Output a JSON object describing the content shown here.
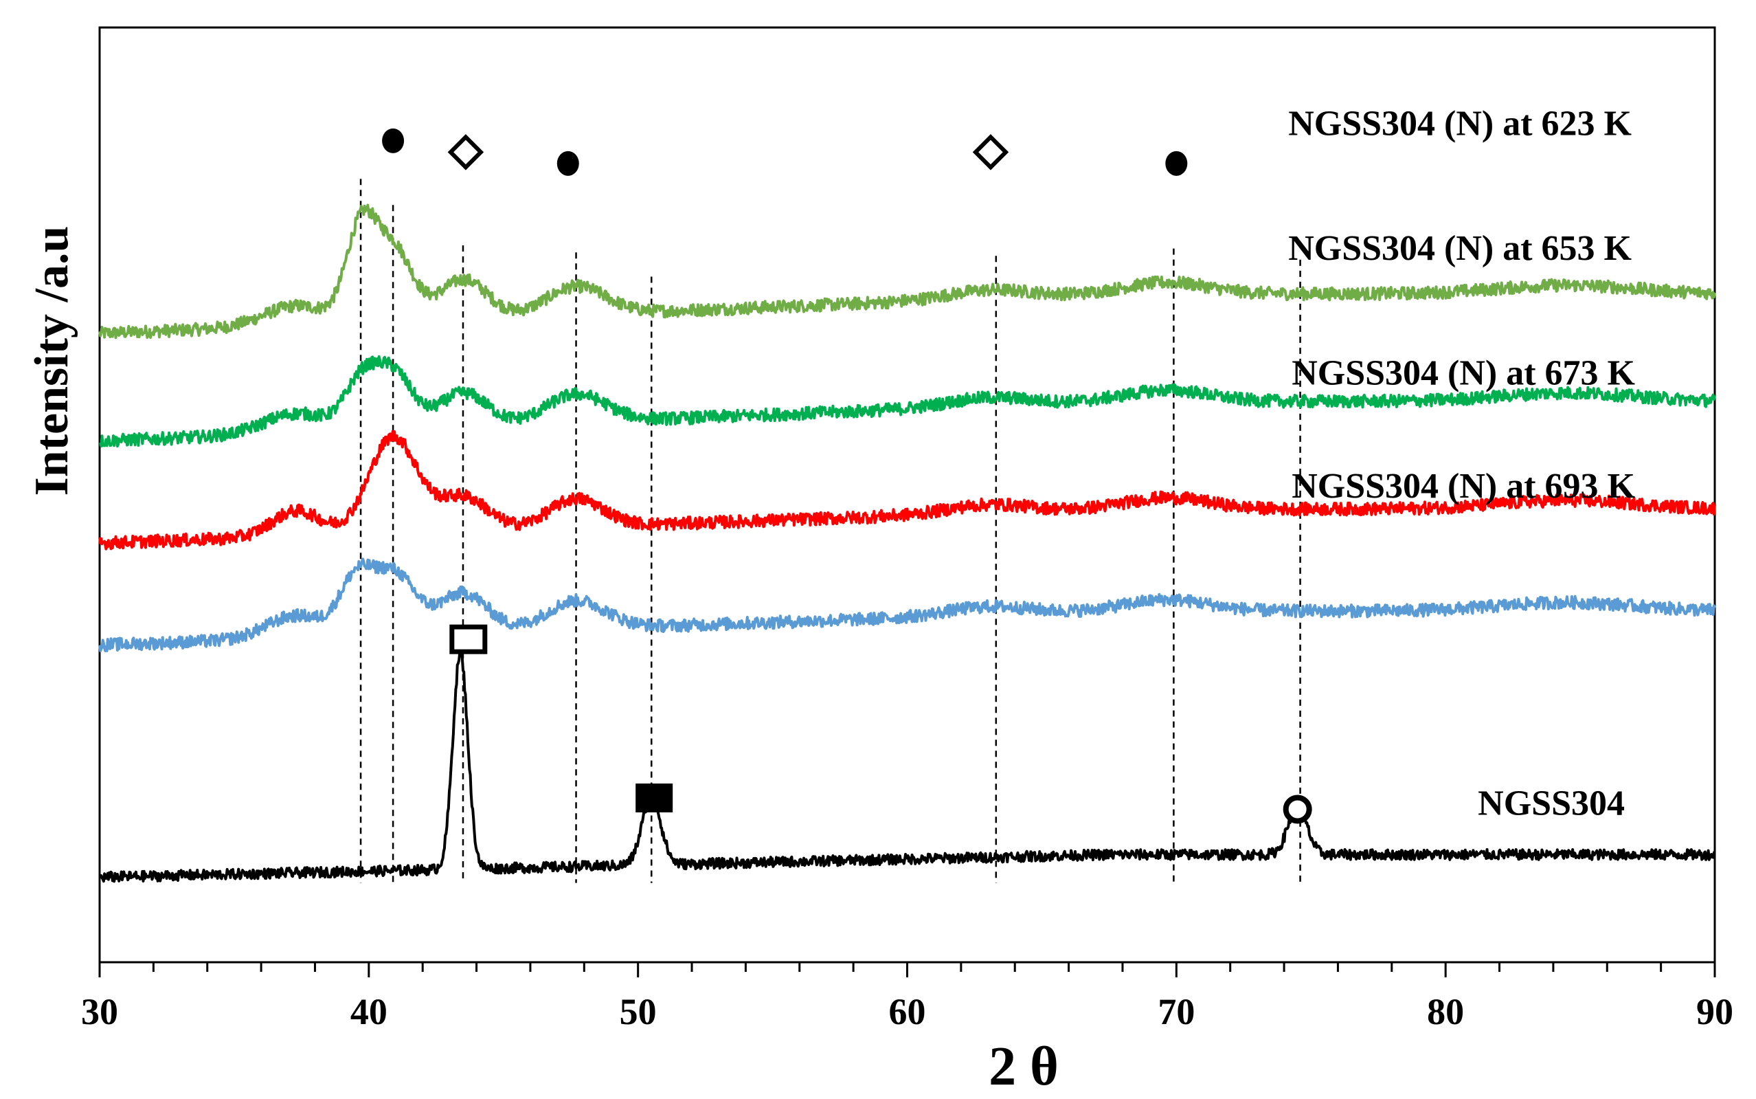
{
  "chart_data": {
    "type": "line",
    "title": "",
    "xlabel": "2 θ",
    "ylabel": "Intensity /a.u",
    "xlim": [
      30,
      90
    ],
    "xticks": [
      30,
      40,
      50,
      60,
      70,
      80,
      90
    ],
    "y_ticks_shown": false,
    "legend": "inline labels at right",
    "series": [
      {
        "name": "NGSS304 (N) at 623 K",
        "label": "NGSS304 (N) at 623 K",
        "color": "#70ad47",
        "baseline": 56,
        "end_level": 63,
        "noise": 1.1,
        "peaks": [
          {
            "x": 37.3,
            "height": 3.5,
            "width": 1.2
          },
          {
            "x": 39.7,
            "height": 16,
            "width": 0.55
          },
          {
            "x": 40.9,
            "height": 13,
            "width": 0.7
          },
          {
            "x": 43.5,
            "height": 7,
            "width": 0.9
          },
          {
            "x": 47.7,
            "height": 5,
            "width": 1.1
          },
          {
            "x": 63.0,
            "height": 1.5,
            "width": 1.5
          },
          {
            "x": 69.7,
            "height": 2,
            "width": 1.5
          },
          {
            "x": 84.5,
            "height": 1.5,
            "width": 2.5
          }
        ]
      },
      {
        "name": "NGSS304 (N) at 653 K",
        "label": "NGSS304 (N) at 653 K",
        "color": "#00b050",
        "baseline": 37,
        "end_level": 44,
        "noise": 1.1,
        "peaks": [
          {
            "x": 37.3,
            "height": 3.5,
            "width": 1.2
          },
          {
            "x": 39.7,
            "height": 8,
            "width": 0.6
          },
          {
            "x": 40.9,
            "height": 10,
            "width": 0.7
          },
          {
            "x": 43.5,
            "height": 6,
            "width": 0.9
          },
          {
            "x": 47.7,
            "height": 5,
            "width": 1.1
          },
          {
            "x": 63.0,
            "height": 1.5,
            "width": 1.5
          },
          {
            "x": 69.7,
            "height": 2,
            "width": 1.5
          },
          {
            "x": 84.5,
            "height": 1.5,
            "width": 2.5
          }
        ]
      },
      {
        "name": "NGSS304 (N) at 673 K",
        "label": "NGSS304 (N) at 673 K",
        "color": "#ff0000",
        "baseline": 19,
        "end_level": 25,
        "noise": 1.1,
        "peaks": [
          {
            "x": 37.3,
            "height": 4.5,
            "width": 0.9
          },
          {
            "x": 40.9,
            "height": 17,
            "width": 0.9
          },
          {
            "x": 43.5,
            "height": 6,
            "width": 0.9
          },
          {
            "x": 47.7,
            "height": 5,
            "width": 1.0
          },
          {
            "x": 63.0,
            "height": 1.5,
            "width": 1.5
          },
          {
            "x": 69.7,
            "height": 2,
            "width": 1.5
          },
          {
            "x": 84.5,
            "height": 1.5,
            "width": 2.5
          }
        ]
      },
      {
        "name": "NGSS304 (N) at 693 K",
        "label": "NGSS304 (N) at 693 K",
        "color": "#5b9bd5",
        "baseline": 1,
        "end_level": 7,
        "noise": 1.1,
        "peaks": [
          {
            "x": 37.3,
            "height": 4,
            "width": 1.1
          },
          {
            "x": 39.5,
            "height": 9,
            "width": 0.6
          },
          {
            "x": 40.9,
            "height": 11,
            "width": 0.8
          },
          {
            "x": 43.5,
            "height": 7,
            "width": 0.9
          },
          {
            "x": 47.7,
            "height": 5,
            "width": 1.1
          },
          {
            "x": 63.0,
            "height": 1.5,
            "width": 1.5
          },
          {
            "x": 69.7,
            "height": 2,
            "width": 1.5
          },
          {
            "x": 84.5,
            "height": 1.5,
            "width": 2.5
          }
        ]
      },
      {
        "name": "NGSS304",
        "label": "NGSS304",
        "color": "#000000",
        "baseline": -40,
        "end_level": -36,
        "noise": 0.9,
        "peaks": [
          {
            "x": 43.4,
            "height": 38,
            "width": 0.28
          },
          {
            "x": 50.5,
            "height": 12,
            "width": 0.35
          },
          {
            "x": 74.5,
            "height": 8.5,
            "width": 0.35
          }
        ]
      }
    ],
    "reference_lines_2theta": [
      {
        "x": 39.7,
        "from_series": 4,
        "to_series": 0
      },
      {
        "x": 40.9,
        "from_series": 4,
        "to_series": 0
      },
      {
        "x": 43.5,
        "from_series": 4,
        "to_series": 0
      },
      {
        "x": 47.7,
        "from_series": 4,
        "to_series": 0
      },
      {
        "x": 50.5,
        "from_series": 4,
        "to_series": 0
      },
      {
        "x": 63.3,
        "from_series": 4,
        "to_series": 0
      },
      {
        "x": 69.9,
        "from_series": 4,
        "to_series": 0
      },
      {
        "x": 74.6,
        "from_series": 4,
        "to_series": 0
      }
    ],
    "phase_markers": [
      {
        "x": 40.9,
        "y": 90,
        "symbol": "filled-circle"
      },
      {
        "x": 43.6,
        "y": 88,
        "symbol": "open-diamond"
      },
      {
        "x": 47.4,
        "y": 86,
        "symbol": "filled-circle"
      },
      {
        "x": 63.1,
        "y": 88,
        "symbol": "open-diamond"
      },
      {
        "x": 70.0,
        "y": 86,
        "symbol": "filled-circle"
      },
      {
        "x": 43.7,
        "y": 2,
        "symbol": "open-square"
      },
      {
        "x": 50.6,
        "y": -26,
        "symbol": "filled-square"
      },
      {
        "x": 74.5,
        "y": -28,
        "symbol": "open-circle"
      }
    ]
  }
}
